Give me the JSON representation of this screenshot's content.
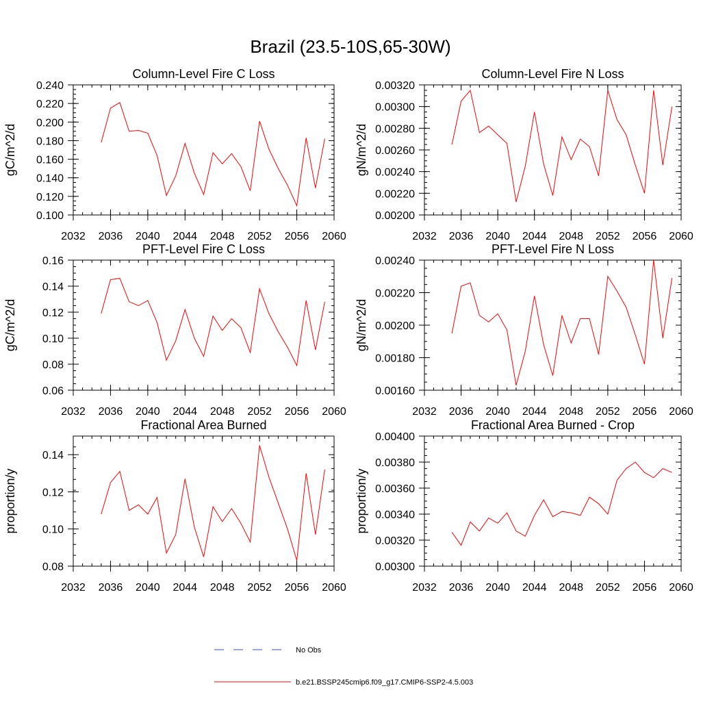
{
  "figure": {
    "title": "Brazil (23.5-10S,65-30W)",
    "colors": {
      "model": "#ff0000",
      "obs": "#3b4cc0",
      "axis": "#000000"
    }
  },
  "legend": {
    "entries": [
      {
        "label": "No Obs",
        "style": "dashed",
        "color": "#3b4cc0"
      },
      {
        "label": "b.e21.BSSP245cmip6.f09_g17.CMIP6-SSP2-4.5.003",
        "style": "solid",
        "color": "#ff0000"
      }
    ]
  },
  "chart_data": [
    {
      "type": "line",
      "title": "Column-Level Fire C Loss",
      "xlabel": "",
      "ylabel": "gC/m^2/d",
      "xlim": [
        2032,
        2060
      ],
      "xticks": [
        "2032",
        "2036",
        "2040",
        "2044",
        "2048",
        "2052",
        "2056",
        "2060"
      ],
      "ylim": [
        0.1,
        0.24
      ],
      "yticks": [
        "0.100",
        "0.120",
        "0.140",
        "0.160",
        "0.180",
        "0.200",
        "0.220",
        "0.240"
      ],
      "series": [
        {
          "name": "b.e21.BSSP245cmip6.f09_g17.CMIP6-SSP2-4.5.003",
          "x": [
            2035,
            2036,
            2037,
            2038,
            2039,
            2040,
            2041,
            2042,
            2043,
            2044,
            2045,
            2046,
            2047,
            2048,
            2049,
            2050,
            2051,
            2052,
            2053,
            2054,
            2055,
            2056,
            2057,
            2058,
            2059
          ],
          "values": [
            0.178,
            0.215,
            0.221,
            0.19,
            0.191,
            0.188,
            0.164,
            0.121,
            0.142,
            0.177,
            0.145,
            0.122,
            0.167,
            0.155,
            0.166,
            0.152,
            0.126,
            0.201,
            0.171,
            0.15,
            0.132,
            0.11,
            0.183,
            0.129,
            0.182
          ]
        }
      ]
    },
    {
      "type": "line",
      "title": "Column-Level Fire N Loss",
      "xlabel": "",
      "ylabel": "gN/m^2/d",
      "xlim": [
        2032,
        2060
      ],
      "xticks": [
        "2032",
        "2036",
        "2040",
        "2044",
        "2048",
        "2052",
        "2056",
        "2060"
      ],
      "ylim": [
        0.002,
        0.0032
      ],
      "yticks": [
        "0.00200",
        "0.00220",
        "0.00240",
        "0.00260",
        "0.00280",
        "0.00300",
        "0.00320"
      ],
      "series": [
        {
          "name": "b.e21.BSSP245cmip6.f09_g17.CMIP6-SSP2-4.5.003",
          "x": [
            2035,
            2036,
            2037,
            2038,
            2039,
            2040,
            2041,
            2042,
            2043,
            2044,
            2045,
            2046,
            2047,
            2048,
            2049,
            2050,
            2051,
            2052,
            2053,
            2054,
            2055,
            2056,
            2057,
            2058,
            2059
          ],
          "values": [
            0.00265,
            0.00305,
            0.00315,
            0.00276,
            0.00282,
            0.00274,
            0.00266,
            0.00212,
            0.00245,
            0.00295,
            0.00247,
            0.00218,
            0.00272,
            0.00251,
            0.0027,
            0.00263,
            0.00236,
            0.00315,
            0.00288,
            0.00274,
            0.00246,
            0.0022,
            0.00315,
            0.00246,
            0.003
          ]
        }
      ]
    },
    {
      "type": "line",
      "title": "PFT-Level Fire C Loss",
      "xlabel": "",
      "ylabel": "gC/m^2/d",
      "xlim": [
        2032,
        2060
      ],
      "xticks": [
        "2032",
        "2036",
        "2040",
        "2044",
        "2048",
        "2052",
        "2056",
        "2060"
      ],
      "ylim": [
        0.06,
        0.16
      ],
      "yticks": [
        "0.06",
        "0.08",
        "0.10",
        "0.12",
        "0.14",
        "0.16"
      ],
      "series": [
        {
          "name": "b.e21.BSSP245cmip6.f09_g17.CMIP6-SSP2-4.5.003",
          "x": [
            2035,
            2036,
            2037,
            2038,
            2039,
            2040,
            2041,
            2042,
            2043,
            2044,
            2045,
            2046,
            2047,
            2048,
            2049,
            2050,
            2051,
            2052,
            2053,
            2054,
            2055,
            2056,
            2057,
            2058,
            2059
          ],
          "values": [
            0.119,
            0.145,
            0.146,
            0.128,
            0.125,
            0.129,
            0.112,
            0.083,
            0.098,
            0.122,
            0.1,
            0.086,
            0.117,
            0.106,
            0.115,
            0.108,
            0.089,
            0.138,
            0.119,
            0.105,
            0.093,
            0.079,
            0.129,
            0.091,
            0.128
          ]
        }
      ]
    },
    {
      "type": "line",
      "title": "PFT-Level Fire N Loss",
      "xlabel": "",
      "ylabel": "gN/m^2/d",
      "xlim": [
        2032,
        2060
      ],
      "xticks": [
        "2032",
        "2036",
        "2040",
        "2044",
        "2048",
        "2052",
        "2056",
        "2060"
      ],
      "ylim": [
        0.0016,
        0.0024
      ],
      "yticks": [
        "0.00160",
        "0.00180",
        "0.00200",
        "0.00220",
        "0.00240"
      ],
      "series": [
        {
          "name": "b.e21.BSSP245cmip6.f09_g17.CMIP6-SSP2-4.5.003",
          "x": [
            2035,
            2036,
            2037,
            2038,
            2039,
            2040,
            2041,
            2042,
            2043,
            2044,
            2045,
            2046,
            2047,
            2048,
            2049,
            2050,
            2051,
            2052,
            2053,
            2054,
            2055,
            2056,
            2057,
            2058,
            2059
          ],
          "values": [
            0.00195,
            0.00224,
            0.00226,
            0.00206,
            0.00202,
            0.00207,
            0.00197,
            0.00163,
            0.00184,
            0.00218,
            0.00188,
            0.00169,
            0.00206,
            0.00189,
            0.00204,
            0.00204,
            0.00182,
            0.0023,
            0.00221,
            0.00211,
            0.00194,
            0.00176,
            0.0024,
            0.00192,
            0.00229
          ]
        }
      ]
    },
    {
      "type": "line",
      "title": "Fractional Area Burned",
      "xlabel": "",
      "ylabel": "proportion/y",
      "xlim": [
        2032,
        2060
      ],
      "xticks": [
        "2032",
        "2036",
        "2040",
        "2044",
        "2048",
        "2052",
        "2056",
        "2060"
      ],
      "ylim": [
        0.08,
        0.15
      ],
      "yticks": [
        "0.08",
        "0.10",
        "0.12",
        "0.14"
      ],
      "series": [
        {
          "name": "b.e21.BSSP245cmip6.f09_g17.CMIP6-SSP2-4.5.003",
          "x": [
            2035,
            2036,
            2037,
            2038,
            2039,
            2040,
            2041,
            2042,
            2043,
            2044,
            2045,
            2046,
            2047,
            2048,
            2049,
            2050,
            2051,
            2052,
            2053,
            2054,
            2055,
            2056,
            2057,
            2058,
            2059
          ],
          "values": [
            0.108,
            0.125,
            0.131,
            0.11,
            0.113,
            0.108,
            0.117,
            0.087,
            0.097,
            0.127,
            0.101,
            0.085,
            0.112,
            0.104,
            0.111,
            0.103,
            0.093,
            0.145,
            0.128,
            0.114,
            0.1,
            0.083,
            0.13,
            0.097,
            0.132
          ]
        }
      ]
    },
    {
      "type": "line",
      "title": "Fractional Area Burned - Crop",
      "xlabel": "",
      "ylabel": "proportion/y",
      "xlim": [
        2032,
        2060
      ],
      "xticks": [
        "2032",
        "2036",
        "2040",
        "2044",
        "2048",
        "2052",
        "2056",
        "2060"
      ],
      "ylim": [
        0.003,
        0.004
      ],
      "yticks": [
        "0.00300",
        "0.00320",
        "0.00340",
        "0.00360",
        "0.00380",
        "0.00400"
      ],
      "series": [
        {
          "name": "b.e21.BSSP245cmip6.f09_g17.CMIP6-SSP2-4.5.003",
          "x": [
            2035,
            2036,
            2037,
            2038,
            2039,
            2040,
            2041,
            2042,
            2043,
            2044,
            2045,
            2046,
            2047,
            2048,
            2049,
            2050,
            2051,
            2052,
            2053,
            2054,
            2055,
            2056,
            2057,
            2058,
            2059
          ],
          "values": [
            0.00326,
            0.00316,
            0.00334,
            0.00327,
            0.00337,
            0.00333,
            0.00341,
            0.00327,
            0.00323,
            0.00339,
            0.00351,
            0.00338,
            0.00342,
            0.00341,
            0.00339,
            0.00353,
            0.00348,
            0.0034,
            0.00366,
            0.00375,
            0.0038,
            0.00372,
            0.00368,
            0.00375,
            0.00372
          ]
        }
      ]
    }
  ]
}
